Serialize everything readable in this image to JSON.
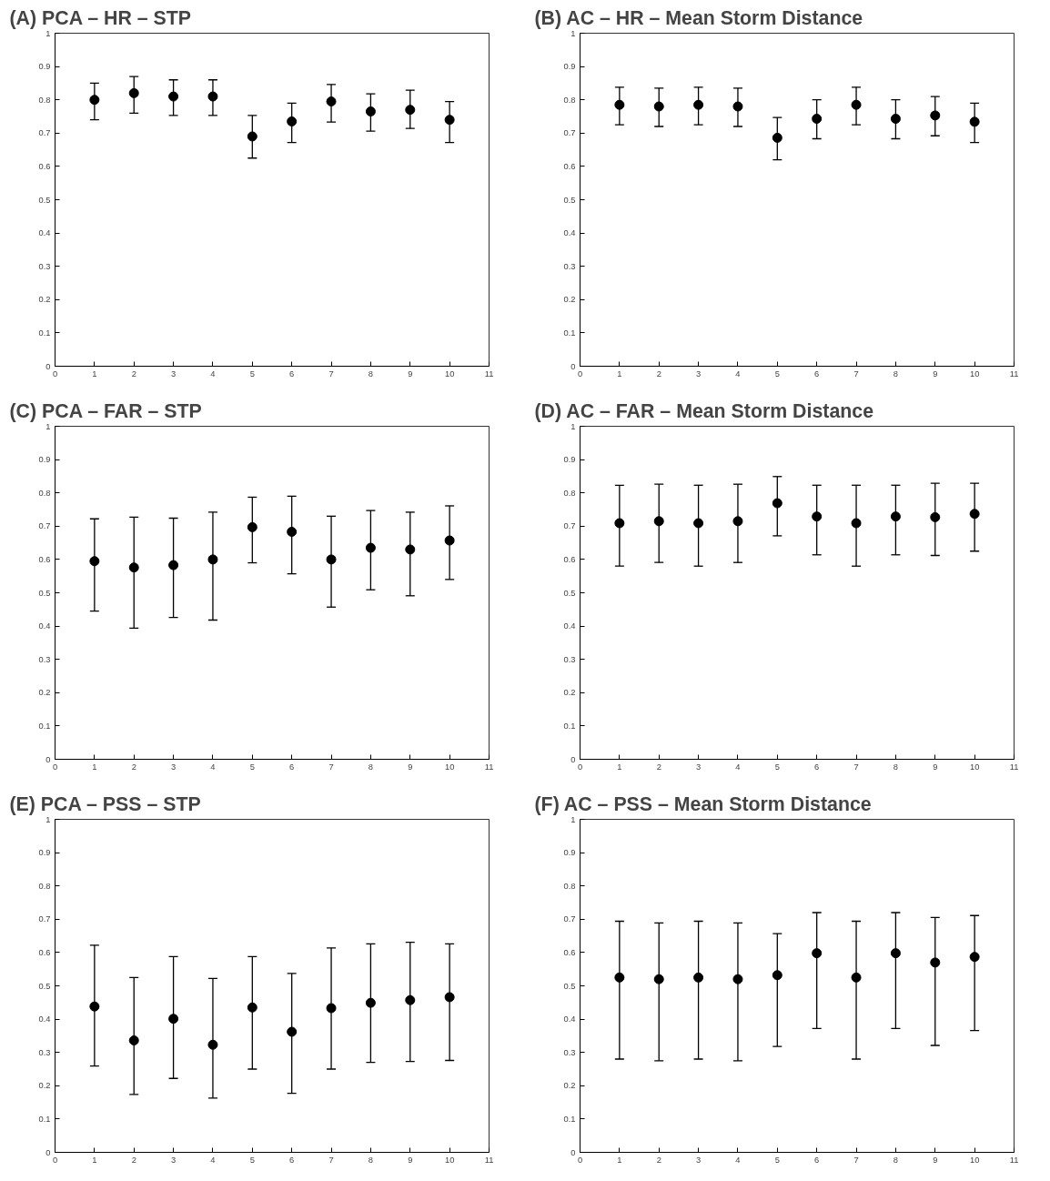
{
  "chart_data": [
    {
      "type": "scatter",
      "title": "(A)  PCA – HR – STP",
      "x": [
        1,
        2,
        3,
        4,
        5,
        6,
        7,
        8,
        9,
        10
      ],
      "values": [
        0.8,
        0.82,
        0.81,
        0.81,
        0.69,
        0.735,
        0.795,
        0.765,
        0.77,
        0.74
      ],
      "errors": [
        [
          0.74,
          0.85
        ],
        [
          0.76,
          0.87
        ],
        [
          0.753,
          0.86
        ],
        [
          0.753,
          0.86
        ],
        [
          0.625,
          0.753
        ],
        [
          0.672,
          0.79
        ],
        [
          0.733,
          0.846
        ],
        [
          0.706,
          0.818
        ],
        [
          0.714,
          0.829
        ],
        [
          0.672,
          0.795
        ]
      ],
      "color": "#000000",
      "marker": "circle",
      "xlim": [
        0,
        11
      ],
      "ylim": [
        0,
        1
      ],
      "xticks": [
        0,
        1,
        2,
        3,
        4,
        5,
        6,
        7,
        8,
        9,
        10,
        11
      ],
      "yticks": [
        0,
        0.1,
        0.2,
        0.3,
        0.4,
        0.5,
        0.6,
        0.7,
        0.8,
        0.9,
        1
      ]
    },
    {
      "type": "scatter",
      "title": "(B)  AC – HR – Mean Storm Distance",
      "x": [
        1,
        2,
        3,
        4,
        5,
        6,
        7,
        8,
        9,
        10
      ],
      "values": [
        0.785,
        0.78,
        0.785,
        0.78,
        0.686,
        0.743,
        0.785,
        0.743,
        0.753,
        0.734
      ],
      "errors": [
        [
          0.725,
          0.838
        ],
        [
          0.72,
          0.835
        ],
        [
          0.725,
          0.838
        ],
        [
          0.72,
          0.835
        ],
        [
          0.62,
          0.747
        ],
        [
          0.683,
          0.8
        ],
        [
          0.725,
          0.838
        ],
        [
          0.683,
          0.8
        ],
        [
          0.692,
          0.81
        ],
        [
          0.672,
          0.79
        ]
      ],
      "color": "#000000",
      "marker": "circle",
      "xlim": [
        0,
        11
      ],
      "ylim": [
        0,
        1
      ],
      "xticks": [
        0,
        1,
        2,
        3,
        4,
        5,
        6,
        7,
        8,
        9,
        10,
        11
      ],
      "yticks": [
        0,
        0.1,
        0.2,
        0.3,
        0.4,
        0.5,
        0.6,
        0.7,
        0.8,
        0.9,
        1
      ]
    },
    {
      "type": "scatter",
      "title": "(C)  PCA – FAR – STP",
      "x": [
        1,
        2,
        3,
        4,
        5,
        6,
        7,
        8,
        9,
        10
      ],
      "values": [
        0.595,
        0.576,
        0.583,
        0.6,
        0.697,
        0.683,
        0.6,
        0.635,
        0.63,
        0.657
      ],
      "errors": [
        [
          0.445,
          0.722
        ],
        [
          0.394,
          0.727
        ],
        [
          0.426,
          0.724
        ],
        [
          0.418,
          0.742
        ],
        [
          0.59,
          0.787
        ],
        [
          0.557,
          0.79
        ],
        [
          0.457,
          0.73
        ],
        [
          0.509,
          0.747
        ],
        [
          0.491,
          0.742
        ],
        [
          0.54,
          0.761
        ]
      ],
      "color": "#000000",
      "marker": "circle",
      "xlim": [
        0,
        11
      ],
      "ylim": [
        0,
        1
      ],
      "xticks": [
        0,
        1,
        2,
        3,
        4,
        5,
        6,
        7,
        8,
        9,
        10,
        11
      ],
      "yticks": [
        0,
        0.1,
        0.2,
        0.3,
        0.4,
        0.5,
        0.6,
        0.7,
        0.8,
        0.9,
        1
      ]
    },
    {
      "type": "scatter",
      "title": "(D)  AC – FAR – Mean Storm Distance",
      "x": [
        1,
        2,
        3,
        4,
        5,
        6,
        7,
        8,
        9,
        10
      ],
      "values": [
        0.709,
        0.715,
        0.709,
        0.715,
        0.769,
        0.729,
        0.709,
        0.729,
        0.727,
        0.737
      ],
      "errors": [
        [
          0.58,
          0.823
        ],
        [
          0.591,
          0.826
        ],
        [
          0.58,
          0.823
        ],
        [
          0.591,
          0.826
        ],
        [
          0.671,
          0.849
        ],
        [
          0.614,
          0.823
        ],
        [
          0.58,
          0.823
        ],
        [
          0.614,
          0.823
        ],
        [
          0.612,
          0.829
        ],
        [
          0.625,
          0.829
        ]
      ],
      "color": "#000000",
      "marker": "circle",
      "xlim": [
        0,
        11
      ],
      "ylim": [
        0,
        1
      ],
      "xticks": [
        0,
        1,
        2,
        3,
        4,
        5,
        6,
        7,
        8,
        9,
        10,
        11
      ],
      "yticks": [
        0,
        0.1,
        0.2,
        0.3,
        0.4,
        0.5,
        0.6,
        0.7,
        0.8,
        0.9,
        1
      ]
    },
    {
      "type": "scatter",
      "title": "(E)  PCA – PSS – STP",
      "x": [
        1,
        2,
        3,
        4,
        5,
        6,
        7,
        8,
        9,
        10
      ],
      "values": [
        0.438,
        0.336,
        0.401,
        0.323,
        0.435,
        0.362,
        0.433,
        0.449,
        0.457,
        0.466
      ],
      "errors": [
        [
          0.259,
          0.622
        ],
        [
          0.174,
          0.525
        ],
        [
          0.222,
          0.588
        ],
        [
          0.163,
          0.522
        ],
        [
          0.25,
          0.588
        ],
        [
          0.177,
          0.537
        ],
        [
          0.25,
          0.614
        ],
        [
          0.27,
          0.626
        ],
        [
          0.273,
          0.631
        ],
        [
          0.276,
          0.626
        ]
      ],
      "color": "#000000",
      "marker": "circle",
      "xlim": [
        0,
        11
      ],
      "ylim": [
        0,
        1
      ],
      "xticks": [
        0,
        1,
        2,
        3,
        4,
        5,
        6,
        7,
        8,
        9,
        10,
        11
      ],
      "yticks": [
        0,
        0.1,
        0.2,
        0.3,
        0.4,
        0.5,
        0.6,
        0.7,
        0.8,
        0.9,
        1
      ]
    },
    {
      "type": "scatter",
      "title": "(F)  AC – PSS – Mean Storm Distance",
      "x": [
        1,
        2,
        3,
        4,
        5,
        6,
        7,
        8,
        9,
        10
      ],
      "values": [
        0.525,
        0.52,
        0.525,
        0.52,
        0.532,
        0.598,
        0.525,
        0.598,
        0.57,
        0.587
      ],
      "errors": [
        [
          0.28,
          0.694
        ],
        [
          0.275,
          0.689
        ],
        [
          0.28,
          0.694
        ],
        [
          0.275,
          0.689
        ],
        [
          0.318,
          0.657
        ],
        [
          0.372,
          0.72
        ],
        [
          0.28,
          0.694
        ],
        [
          0.372,
          0.72
        ],
        [
          0.321,
          0.705
        ],
        [
          0.366,
          0.711
        ]
      ],
      "color": "#000000",
      "marker": "circle",
      "xlim": [
        0,
        11
      ],
      "ylim": [
        0,
        1
      ],
      "xticks": [
        0,
        1,
        2,
        3,
        4,
        5,
        6,
        7,
        8,
        9,
        10,
        11
      ],
      "yticks": [
        0,
        0.1,
        0.2,
        0.3,
        0.4,
        0.5,
        0.6,
        0.7,
        0.8,
        0.9,
        1
      ]
    }
  ]
}
